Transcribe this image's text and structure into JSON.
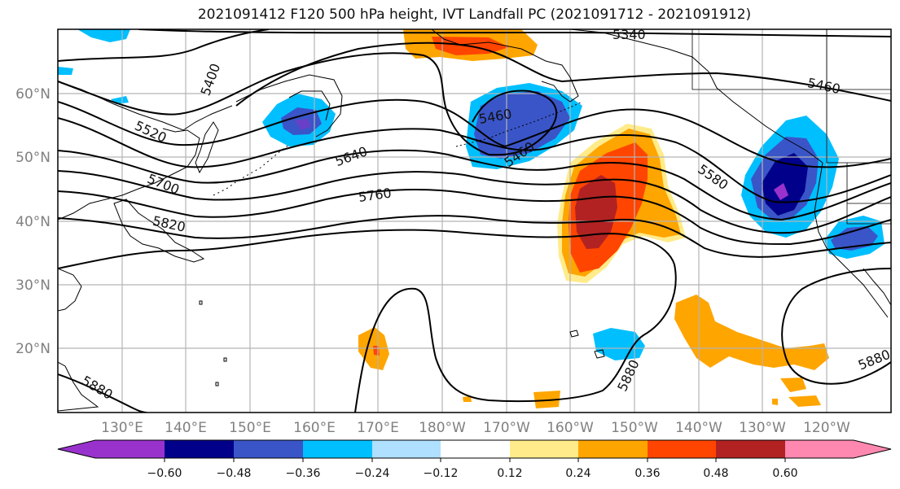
{
  "title": "2021091412 F120 500 hPa height, IVT Landfall PC (2021091712 - 2021091912)",
  "lat_labels": [
    "60°N",
    "50°N",
    "40°N",
    "30°N",
    "20°N"
  ],
  "lon_labels": [
    "130°E",
    "140°E",
    "150°E",
    "160°E",
    "170°E",
    "180°W",
    "170°W",
    "160°W",
    "150°W",
    "140°W",
    "130°W",
    "120°W"
  ],
  "contour_labels": [
    "5340",
    "5400",
    "5460",
    "5520",
    "5640",
    "5460",
    "5460",
    "5580",
    "5760",
    "5700",
    "5820",
    "5880",
    "5880",
    "5880"
  ],
  "colorbar": {
    "tick_labels": [
      "−0.60",
      "−0.48",
      "−0.36",
      "−0.24",
      "−0.12",
      "0.12",
      "0.24",
      "0.36",
      "0.48",
      "0.60"
    ],
    "colors": [
      "#9932cc",
      "#00008b",
      "#3a55c8",
      "#00bfff",
      "#b0e0ff",
      "#ffffff",
      "#ffeb8a",
      "#ffa500",
      "#ff4500",
      "#b22222",
      "#ff88b0"
    ]
  }
}
